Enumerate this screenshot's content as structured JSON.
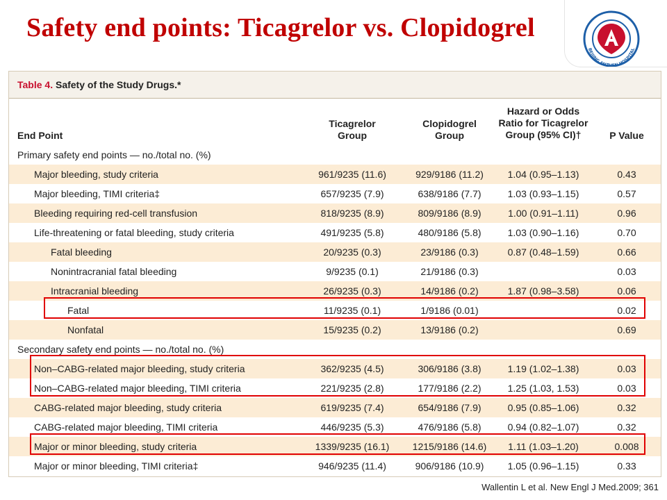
{
  "title": "Safety end points: Ticagrelor vs. Clopidogrel",
  "logo": {
    "icon": "hospital-logo-icon",
    "text": "BEIJING ANZHEN HOSPITAL"
  },
  "table": {
    "caption_num": "Table 4.",
    "caption_text": "Safety of the Study Drugs.*",
    "headers": {
      "end_point": "End Point",
      "ticagrelor": "Ticagrelor\nGroup",
      "clopidogrel": "Clopidogrel\nGroup",
      "hazard": "Hazard or Odds\nRatio for Ticagrelor\nGroup (95% CI)†",
      "p_value": "P Value"
    },
    "rows": [
      {
        "label": "Primary safety end points — no./total no. (%)",
        "indent": 0,
        "tic": "",
        "clo": "",
        "hr": "",
        "p": ""
      },
      {
        "label": "Major bleeding, study criteria",
        "indent": 1,
        "tic": "961/9235 (11.6)",
        "clo": "929/9186 (11.2)",
        "hr": "1.04 (0.95–1.13)",
        "p": "0.43"
      },
      {
        "label": "Major bleeding, TIMI criteria‡",
        "indent": 1,
        "tic": "657/9235 (7.9)",
        "clo": "638/9186 (7.7)",
        "hr": "1.03 (0.93–1.15)",
        "p": "0.57"
      },
      {
        "label": "Bleeding requiring red-cell transfusion",
        "indent": 1,
        "tic": "818/9235 (8.9)",
        "clo": "809/9186 (8.9)",
        "hr": "1.00 (0.91–1.11)",
        "p": "0.96"
      },
      {
        "label": "Life-threatening or fatal bleeding, study criteria",
        "indent": 1,
        "tic": "491/9235 (5.8)",
        "clo": "480/9186 (5.8)",
        "hr": "1.03 (0.90–1.16)",
        "p": "0.70"
      },
      {
        "label": "Fatal bleeding",
        "indent": 2,
        "tic": "20/9235 (0.3)",
        "clo": "23/9186 (0.3)",
        "hr": "0.87 (0.48–1.59)",
        "p": "0.66"
      },
      {
        "label": "Nonintracranial fatal bleeding",
        "indent": 2,
        "tic": "9/9235 (0.1)",
        "clo": "21/9186 (0.3)",
        "hr": "",
        "p": "0.03"
      },
      {
        "label": "Intracranial bleeding",
        "indent": 2,
        "tic": "26/9235 (0.3)",
        "clo": "14/9186 (0.2)",
        "hr": "1.87 (0.98–3.58)",
        "p": "0.06"
      },
      {
        "label": "Fatal",
        "indent": 3,
        "tic": "11/9235 (0.1)",
        "clo": "1/9186 (0.01)",
        "hr": "",
        "p": "0.02"
      },
      {
        "label": "Nonfatal",
        "indent": 3,
        "tic": "15/9235 (0.2)",
        "clo": "13/9186 (0.2)",
        "hr": "",
        "p": "0.69"
      },
      {
        "label": "Secondary safety end points — no./total no. (%)",
        "indent": 0,
        "tic": "",
        "clo": "",
        "hr": "",
        "p": ""
      },
      {
        "label": "Non–CABG-related major bleeding, study criteria",
        "indent": 1,
        "tic": "362/9235 (4.5)",
        "clo": "306/9186 (3.8)",
        "hr": "1.19 (1.02–1.38)",
        "p": "0.03"
      },
      {
        "label": "Non–CABG-related major bleeding, TIMI criteria",
        "indent": 1,
        "tic": "221/9235 (2.8)",
        "clo": "177/9186 (2.2)",
        "hr": "1.25 (1.03, 1.53)",
        "p": "0.03"
      },
      {
        "label": "CABG-related major bleeding, study criteria",
        "indent": 1,
        "tic": "619/9235 (7.4)",
        "clo": "654/9186 (7.9)",
        "hr": "0.95 (0.85–1.06)",
        "p": "0.32"
      },
      {
        "label": "CABG-related major bleeding, TIMI criteria",
        "indent": 1,
        "tic": "446/9235 (5.3)",
        "clo": "476/9186 (5.8)",
        "hr": "0.94 (0.82–1.07)",
        "p": "0.32"
      },
      {
        "label": "Major or minor bleeding, study criteria",
        "indent": 1,
        "tic": "1339/9235 (16.1)",
        "clo": "1215/9186 (14.6)",
        "hr": "1.11 (1.03–1.20)",
        "p": "0.008"
      },
      {
        "label": "Major or minor bleeding, TIMI criteria‡",
        "indent": 1,
        "tic": "946/9235 (11.4)",
        "clo": "906/9186 (10.9)",
        "hr": "1.05 (0.96–1.15)",
        "p": "0.33"
      }
    ],
    "highlight_color": "#e00000",
    "shade_color": "#fcecd5"
  },
  "citation": "Wallentin L et al. New Engl J Med.2009; 361"
}
